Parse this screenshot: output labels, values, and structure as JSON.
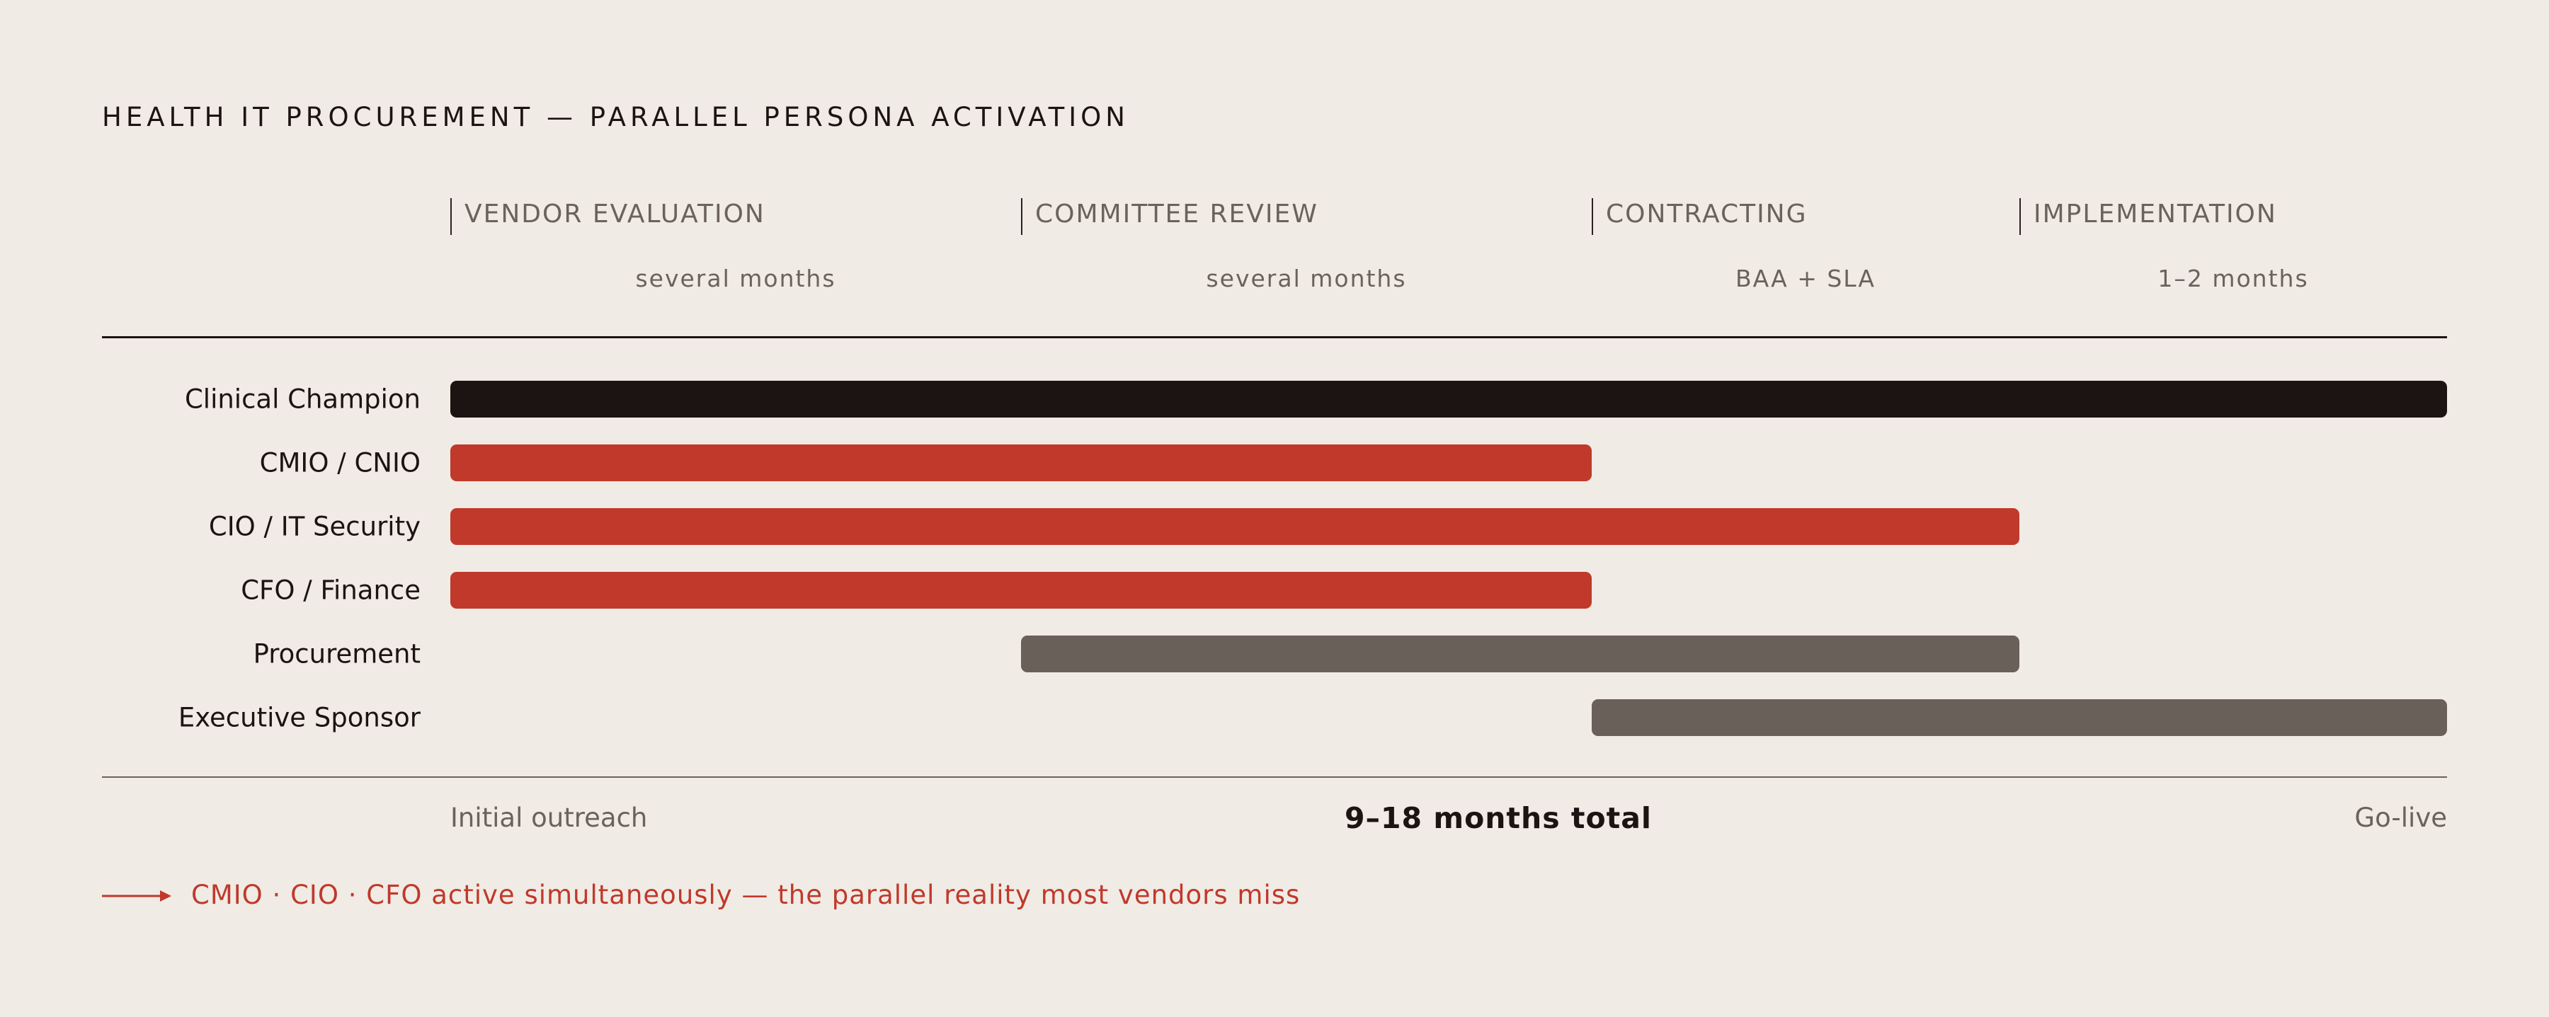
{
  "chart_data": {
    "type": "gantt",
    "title": "HEALTH IT PROCUREMENT — PARALLEL PERSONA ACTIVATION",
    "phases": [
      {
        "label": "VENDOR EVALUATION",
        "duration": "several months"
      },
      {
        "label": "COMMITTEE REVIEW",
        "duration": "several months"
      },
      {
        "label": "CONTRACTING",
        "duration": "BAA + SLA"
      },
      {
        "label": "IMPLEMENTATION",
        "duration": "1–2 months"
      }
    ],
    "series": [
      {
        "name": "Clinical Champion",
        "start_phase": 0,
        "end_phase": 4,
        "color": "#1c1412"
      },
      {
        "name": "CMIO / CNIO",
        "start_phase": 0,
        "end_phase": 2,
        "color": "#c0392b"
      },
      {
        "name": "CIO / IT Security",
        "start_phase": 0,
        "end_phase": 3,
        "color": "#c0392b"
      },
      {
        "name": "CFO / Finance",
        "start_phase": 0,
        "end_phase": 2,
        "color": "#c0392b"
      },
      {
        "name": "Procurement",
        "start_phase": 1,
        "end_phase": 3,
        "color": "#6a605a"
      },
      {
        "name": "Executive Sponsor",
        "start_phase": 2,
        "end_phase": 4,
        "color": "#6a605a"
      }
    ],
    "footer": {
      "start": "Initial outreach",
      "total": "9–18 months total",
      "end": "Go-live"
    },
    "callout": "CMIO · CIO · CFO active simultaneously — the parallel reality most vendors miss",
    "accent_color": "#c0392b"
  }
}
